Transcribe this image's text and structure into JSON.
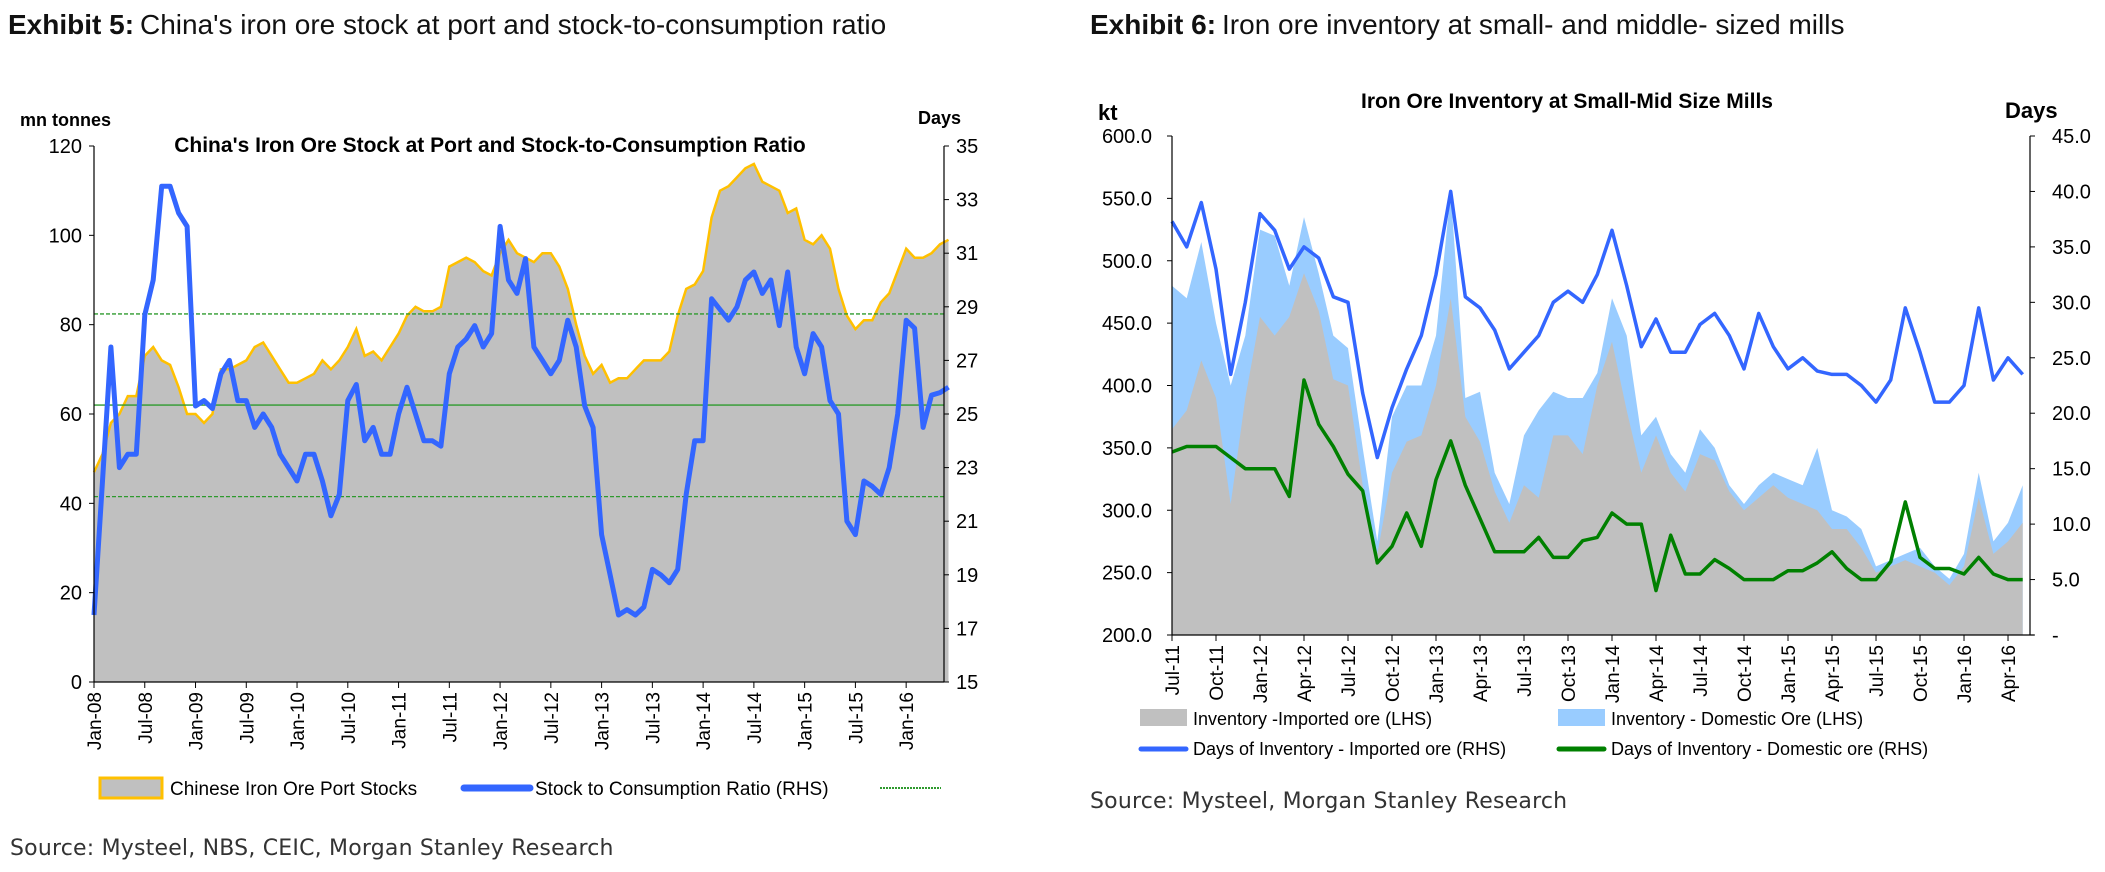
{
  "exhibit5": {
    "label": "Exhibit 5:",
    "title": "China's iron ore stock at port and stock-to-consumption ratio",
    "source": "Source: Mysteel, NBS, CEIC, Morgan Stanley Research"
  },
  "exhibit6": {
    "label": "Exhibit 6:",
    "title": "Iron ore inventory at small- and middle- sized mills",
    "source": "Source: Mysteel, Morgan Stanley Research"
  },
  "colors": {
    "stock_fill": "#c0c0c0",
    "stock_line": "#ffc000",
    "ratio_line": "#3366ff",
    "ref_line": "#2e9a2e",
    "domestic_fill": "#99ccff",
    "domestic_days": "#008000"
  },
  "chart_data": [
    {
      "type": "area",
      "title": "China's Iron Ore Stock at Port and Stock-to-Consumption Ratio",
      "ylabel": "mn tonnes",
      "y2label": "Days",
      "ylim": [
        0,
        120
      ],
      "y2lim": [
        15,
        35
      ],
      "yticks": [
        "0",
        "20",
        "40",
        "60",
        "80",
        "100",
        "120"
      ],
      "y2ticks": [
        "15",
        "17",
        "19",
        "21",
        "23",
        "25",
        "27",
        "29",
        "31",
        "33",
        "35"
      ],
      "x_start": "Jan-08",
      "x_step": "monthly",
      "xticks": [
        "Jan-08",
        "Jul-08",
        "Jan-09",
        "Jul-09",
        "Jan-10",
        "Jul-10",
        "Jan-11",
        "Jul-11",
        "Jan-12",
        "Jul-12",
        "Jan-13",
        "Jul-13",
        "Jan-14",
        "Jul-14",
        "Jan-15",
        "Jul-15",
        "Jan-16"
      ],
      "reference_lines": [
        {
          "value": 82.4,
          "style": "dashed"
        },
        {
          "value": 62,
          "style": "solid"
        },
        {
          "value": 41.5,
          "style": "dashed"
        }
      ],
      "series": [
        {
          "name": "Chinese Iron Ore Port Stocks",
          "axis": "left",
          "kind": "area",
          "values": [
            47,
            51,
            58,
            60,
            64,
            64,
            73,
            75,
            72,
            71,
            66,
            60,
            60,
            58,
            60,
            70,
            70,
            71,
            72,
            75,
            76,
            73,
            70,
            67,
            67,
            68,
            69,
            72,
            70,
            72,
            75,
            79,
            73,
            74,
            72,
            75,
            78,
            82,
            84,
            83,
            83,
            84,
            93,
            94,
            95,
            94,
            92,
            91,
            96,
            99,
            96,
            95,
            94,
            96,
            96,
            93,
            88,
            80,
            73,
            69,
            71,
            67,
            68,
            68,
            70,
            72,
            72,
            72,
            74,
            82,
            88,
            89,
            92,
            104,
            110,
            111,
            113,
            115,
            116,
            112,
            111,
            110,
            105,
            106,
            99,
            98,
            100,
            97,
            88,
            82,
            79,
            81,
            81,
            85,
            87,
            92,
            97,
            95,
            95,
            96,
            98,
            99
          ]
        },
        {
          "name": "Stock to Consumption Ratio (RHS)",
          "axis": "right",
          "kind": "line",
          "values": [
            17.5,
            22.5,
            27.5,
            23,
            23.5,
            23.5,
            28.7,
            30,
            33.5,
            33.5,
            32.5,
            32,
            25.3,
            25.5,
            25.2,
            26.5,
            27,
            25.5,
            25.5,
            24.5,
            25,
            24.5,
            23.5,
            23,
            22.5,
            23.5,
            23.5,
            22.5,
            21.2,
            22,
            25.5,
            26.1,
            24,
            24.5,
            23.5,
            23.5,
            25,
            26,
            25,
            24,
            24,
            23.8,
            26.5,
            27.5,
            27.8,
            28.3,
            27.5,
            28,
            32,
            30,
            29.5,
            30.8,
            27.5,
            27,
            26.5,
            27,
            28.5,
            27.5,
            25.3,
            24.5,
            20.5,
            19,
            17.5,
            17.7,
            17.5,
            17.8,
            19.2,
            19,
            18.7,
            19.2,
            22,
            24,
            24,
            29.3,
            28.9,
            28.5,
            29,
            30,
            30.3,
            29.5,
            30,
            28.3,
            30.3,
            27.5,
            26.5,
            28,
            27.5,
            25.5,
            25,
            21,
            20.5,
            22.5,
            22.3,
            22,
            23,
            25,
            28.5,
            28.2,
            24.5,
            25.7,
            25.8,
            26
          ]
        }
      ],
      "legend": [
        "Chinese Iron Ore Port Stocks",
        "Stock to Consumption Ratio (RHS)"
      ],
      "legend_position": "bottom"
    },
    {
      "type": "area",
      "title": "Iron Ore Inventory at Small-Mid Size Mills",
      "ylabel": "kt",
      "y2label": "Days",
      "ylim": [
        200,
        600
      ],
      "y2lim": [
        0,
        45
      ],
      "yticks": [
        "200.0",
        "250.0",
        "300.0",
        "350.0",
        "400.0",
        "450.0",
        "500.0",
        "550.0",
        "600.0"
      ],
      "y2ticks": [
        "-",
        "5.0",
        "10.0",
        "15.0",
        "20.0",
        "25.0",
        "30.0",
        "35.0",
        "40.0",
        "45.0"
      ],
      "x_start": "Jul-11",
      "x_step": "monthly",
      "xticks": [
        "Jul-11",
        "Oct-11",
        "Jan-12",
        "Apr-12",
        "Jul-12",
        "Oct-12",
        "Jan-13",
        "Apr-13",
        "Jul-13",
        "Oct-13",
        "Jan-14",
        "Apr-14",
        "Jul-14",
        "Oct-14",
        "Jan-15",
        "Apr-15",
        "Jul-15",
        "Oct-15",
        "Jan-16",
        "Apr-16"
      ],
      "series": [
        {
          "name": "Inventory -Imported ore (LHS)",
          "axis": "left",
          "kind": "stacked-area",
          "values": [
            365,
            380,
            420,
            390,
            305,
            390,
            455,
            440,
            455,
            490,
            460,
            405,
            400,
            320,
            265,
            330,
            355,
            360,
            400,
            470,
            375,
            355,
            315,
            290,
            320,
            310,
            360,
            360,
            345,
            400,
            435,
            380,
            330,
            360,
            330,
            315,
            345,
            340,
            315,
            300,
            310,
            320,
            310,
            305,
            300,
            285,
            285,
            270,
            250,
            255,
            260,
            255,
            250,
            240,
            255,
            310,
            265,
            275,
            290
          ]
        },
        {
          "name": "Inventory - Domestic Ore (LHS)",
          "axis": "left",
          "kind": "stacked-area",
          "values": [
            115,
            90,
            95,
            60,
            95,
            50,
            70,
            80,
            25,
            45,
            30,
            35,
            30,
            30,
            10,
            45,
            45,
            40,
            40,
            85,
            15,
            40,
            15,
            15,
            40,
            70,
            35,
            30,
            45,
            10,
            35,
            60,
            30,
            15,
            15,
            15,
            20,
            10,
            5,
            5,
            10,
            10,
            15,
            15,
            50,
            15,
            10,
            15,
            5,
            5,
            5,
            15,
            5,
            5,
            10,
            20,
            10,
            15,
            30
          ]
        },
        {
          "name": "Days of Inventory - Imported ore (RHS)",
          "axis": "right",
          "kind": "line",
          "values": [
            37.3,
            35,
            39,
            33,
            23.5,
            30,
            38,
            36.5,
            33,
            35,
            34,
            30.5,
            30,
            21.8,
            16,
            20.5,
            24,
            27,
            32.5,
            40,
            30.5,
            29.5,
            27.5,
            24,
            25.5,
            27,
            30,
            31,
            30,
            32.5,
            36.5,
            31.5,
            26,
            28.5,
            25.5,
            25.5,
            28,
            29,
            27,
            24,
            29,
            26,
            24,
            25,
            23.8,
            23.5,
            23.5,
            22.5,
            21,
            23,
            29.5,
            25.5,
            21,
            21,
            22.5,
            29.5,
            23,
            25,
            23.5
          ]
        },
        {
          "name": "Days of Inventory - Domestic ore (RHS)",
          "axis": "right",
          "kind": "line",
          "values": [
            16.5,
            17,
            17,
            17,
            16,
            15,
            15,
            15,
            12.5,
            23,
            19,
            17,
            14.5,
            13,
            6.5,
            8,
            11,
            8,
            14,
            17.5,
            13.5,
            10.5,
            7.5,
            7.5,
            7.5,
            8.8,
            7,
            7,
            8.5,
            8.8,
            11,
            10,
            10,
            4,
            9,
            5.5,
            5.5,
            6.8,
            6,
            5,
            5,
            5,
            5.8,
            5.8,
            6.5,
            7.5,
            6,
            5,
            5,
            6.6,
            12,
            7,
            6,
            6,
            5.5,
            7,
            5.5,
            5,
            5
          ]
        }
      ],
      "legend": [
        "Inventory -Imported ore (LHS)",
        "Inventory - Domestic Ore (LHS)",
        "Days of Inventory - Imported ore (RHS)",
        "Days of Inventory - Domestic ore (RHS)"
      ],
      "legend_position": "bottom"
    }
  ]
}
